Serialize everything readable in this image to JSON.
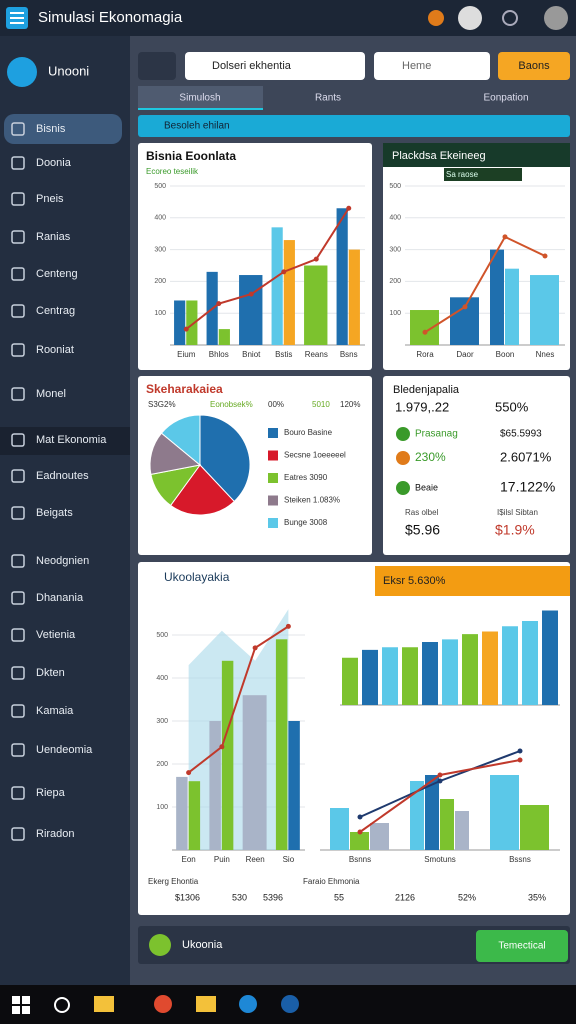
{
  "header": {
    "title": "Simulasi Ekonomagia"
  },
  "sidebar": {
    "brand": "Unooni",
    "items": [
      "Bisnis",
      "Doonia",
      "Pneis",
      "Ranias",
      "Centeng",
      "Centrag",
      "Rooniat",
      "Monel",
      "Mat Ekonomia",
      "Eadnoutes",
      "Beigats",
      "Neodgnien",
      "Dhanania",
      "Vetienia",
      "Dkten",
      "Kamaia",
      "Uendeomia",
      "Riepa",
      "Riradon"
    ]
  },
  "toolbar": {
    "search": "Dolseri ekhentia",
    "filter": "Heme",
    "button": "Baons"
  },
  "tabs": [
    "Simulosh",
    "Rants",
    "Eonpation"
  ],
  "banner": "Besoleh ehilan",
  "chart_data": [
    {
      "type": "bar",
      "title": "Bisnia Eoonlata",
      "subtitle": "Ecoreo teseilik",
      "categories": [
        "Eium",
        "Bhlos",
        "Bniot",
        "Bstis",
        "Reans",
        "Bsns"
      ],
      "ylim": [
        0,
        500
      ],
      "yticks": [
        100,
        200,
        300,
        400,
        500
      ],
      "grid": true,
      "series": [
        {
          "color": "#1f6fae",
          "values": [
            140,
            230,
            220,
            null,
            null,
            430
          ]
        },
        {
          "color": "#7cc22e",
          "values": [
            140,
            50,
            null,
            null,
            250,
            null
          ]
        },
        {
          "color": "#5bc8e8",
          "values": [
            null,
            null,
            null,
            370,
            null,
            null
          ]
        },
        {
          "color": "#f5a623",
          "values": [
            null,
            null,
            null,
            330,
            null,
            300
          ]
        },
        {
          "type": "line",
          "color": "#c0392b",
          "values": [
            50,
            130,
            160,
            230,
            270,
            430
          ]
        }
      ]
    },
    {
      "type": "bar",
      "title": "Plackdsa Ekeineeg",
      "legend": "Sa raose",
      "categories": [
        "Rora",
        "Daor",
        "Boon",
        "Nnes"
      ],
      "ylim": [
        0,
        500
      ],
      "yticks": [
        100,
        200,
        300,
        400,
        500
      ],
      "grid": true,
      "series": [
        {
          "color": "#7cc22e",
          "values": [
            110,
            null,
            null,
            null
          ]
        },
        {
          "color": "#1f6fae",
          "values": [
            null,
            150,
            300,
            null
          ]
        },
        {
          "color": "#5bc8e8",
          "values": [
            null,
            null,
            240,
            220
          ]
        },
        {
          "type": "line",
          "color": "#d0542a",
          "values": [
            40,
            120,
            340,
            280
          ]
        }
      ]
    },
    {
      "type": "pie",
      "title": "Skeharakaiea",
      "annotations": [
        "S3G2%",
        "Eonobsek%",
        "00%",
        "5010",
        "120%"
      ],
      "categories": [
        "Bouro Basine",
        "Secsne 1oeeeeel",
        "Eatres 3090",
        "Steiken 1.083%",
        "Bunge 3008"
      ],
      "values": [
        38,
        22,
        12,
        14,
        14
      ],
      "colors": [
        "#1f6fae",
        "#d7192a",
        "#7cc22e",
        "#8e7a8c",
        "#5bc8e8"
      ]
    },
    {
      "type": "bar",
      "title": "Ukoolayakia",
      "categories": [
        "Eon",
        "Puin",
        "Reen",
        "Sio"
      ],
      "ylim": [
        0,
        600
      ],
      "yticks": [
        100,
        200,
        300,
        400,
        500
      ],
      "grid": true,
      "series": [
        {
          "type": "area",
          "color": "#a8d8ea",
          "values": [
            430,
            510,
            440,
            560
          ]
        },
        {
          "color": "#a9b4c8",
          "values": [
            170,
            300,
            360,
            null
          ]
        },
        {
          "color": "#7cc22e",
          "values": [
            160,
            440,
            null,
            490
          ]
        },
        {
          "color": "#1f6fae",
          "values": [
            null,
            null,
            null,
            300
          ]
        },
        {
          "type": "line",
          "color": "#c0392b",
          "values": [
            180,
            240,
            470,
            520
          ]
        }
      ]
    },
    {
      "type": "bar",
      "title": "Eksr 5.630%",
      "ylim": [
        0,
        200
      ],
      "values": [
        90,
        105,
        110,
        110,
        120,
        125,
        135,
        140,
        150,
        160,
        180
      ],
      "colors": [
        "#7cc22e",
        "#1f6fae",
        "#5bc8e8",
        "#7cc22e",
        "#1f6fae",
        "#5bc8e8",
        "#7cc22e",
        "#f5a623",
        "#5bc8e8",
        "#5bc8e8",
        "#1f6fae"
      ]
    },
    {
      "type": "bar",
      "categories": [
        "Bsnns",
        "Smotuns",
        "Bssns"
      ],
      "ylim": [
        0,
        400
      ],
      "grid": true,
      "series": [
        {
          "color": "#5bc8e8",
          "values": [
            140,
            230,
            250
          ]
        },
        {
          "color": "#1f6fae",
          "values": [
            null,
            250,
            null
          ]
        },
        {
          "color": "#7cc22e",
          "values": [
            60,
            170,
            150
          ]
        },
        {
          "color": "#a9b4c8",
          "values": [
            90,
            130,
            null
          ]
        },
        {
          "type": "line",
          "color": "#1f3a6e",
          "values": [
            110,
            230,
            330
          ]
        },
        {
          "type": "line",
          "color": "#c0392b",
          "values": [
            60,
            250,
            300
          ]
        }
      ]
    }
  ],
  "stats": {
    "title": "Bledenjapalia",
    "top_left": "1.979,.22",
    "top_right": "550%",
    "rows": [
      [
        "Prasanag",
        "$65.5993"
      ],
      [
        "230%",
        "2.6071%"
      ],
      [
        "Beaie",
        "17.122%"
      ]
    ],
    "bottom_labels": [
      "Ras olbel",
      "I$ilsl Sibtan"
    ],
    "bottom_values": [
      "$5.96",
      "$1.9%"
    ]
  },
  "summary": {
    "left_label": "Ekerg Ehontia",
    "left_values": [
      "$1306",
      "530",
      "5396"
    ],
    "right_label": "Faraio Ehmonia",
    "right_values": [
      "55",
      "2126",
      "52%",
      "35%"
    ]
  },
  "footer": {
    "label": "Ukoonia",
    "button": "Temectical"
  }
}
